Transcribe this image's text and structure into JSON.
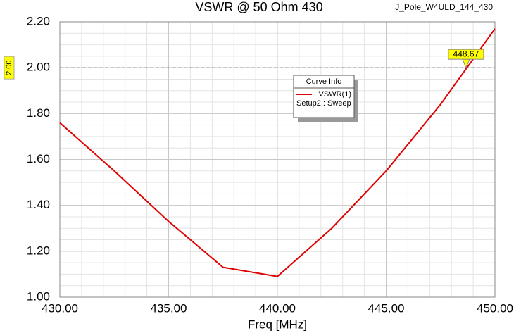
{
  "chart_data": {
    "type": "line",
    "title": "VSWR @ 50 Ohm 430",
    "project": "J_Pole_W4ULD_144_430",
    "x_label": "Freq [MHz]",
    "legend_title": "Curve Info",
    "legend_subtitle": "Setup2 : Sweep",
    "x": [
      430,
      432.5,
      435,
      437.5,
      440,
      442.5,
      445,
      447.5,
      450
    ],
    "series": [
      {
        "name": "VSWR(1)",
        "color": "#e00000",
        "values": [
          1.76,
          1.55,
          1.33,
          1.13,
          1.09,
          1.3,
          1.55,
          1.84,
          2.17
        ]
      }
    ],
    "xlim": [
      430,
      450
    ],
    "ylim": [
      1,
      2.2
    ],
    "xticks": [
      {
        "value": 430,
        "label": "430.00"
      },
      {
        "value": 435,
        "label": "435.00"
      },
      {
        "value": 440,
        "label": "440.00"
      },
      {
        "value": 445,
        "label": "445.00"
      },
      {
        "value": 450,
        "label": "450.00"
      }
    ],
    "yticks": [
      {
        "value": 1,
        "label": "1.00"
      },
      {
        "value": 1.2,
        "label": "1.20"
      },
      {
        "value": 1.4,
        "label": "1.40"
      },
      {
        "value": 1.6,
        "label": "1.60"
      },
      {
        "value": 1.8,
        "label": "1.80"
      },
      {
        "value": 2,
        "label": "2.00"
      },
      {
        "value": 2.2,
        "label": "2.20"
      }
    ],
    "reference_line": {
      "value": 2,
      "label": "2.00"
    },
    "marker": {
      "x": 448.67
    },
    "grid": true
  }
}
